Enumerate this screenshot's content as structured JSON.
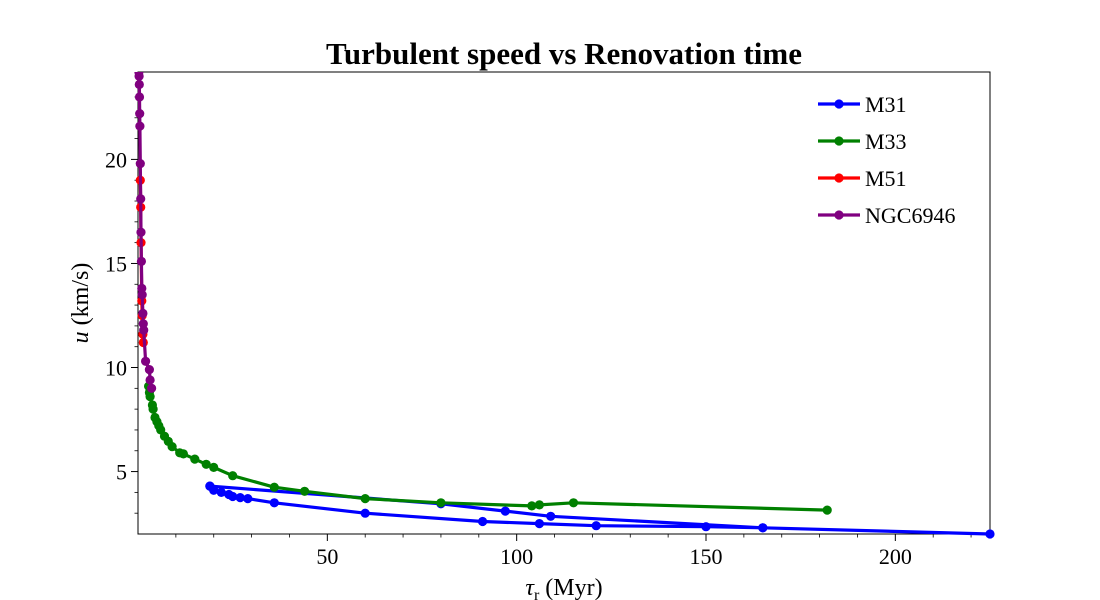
{
  "chart_data": {
    "type": "line",
    "title": "Turbulent speed vs Renovation time",
    "xlabel": {
      "main": "τ",
      "sub": "r",
      "unit": " (Myr)"
    },
    "ylabel": {
      "main": "u",
      "unit": " (km/s)"
    },
    "xlim": [
      0,
      225
    ],
    "ylim": [
      2.0,
      24.2
    ],
    "xticks": [
      50,
      100,
      150,
      200
    ],
    "yticks": [
      5,
      10,
      15,
      20
    ],
    "grid": false,
    "legend_position": "top-right",
    "series": [
      {
        "name": "M31",
        "color": "#0000ff",
        "points": [
          [
            225,
            2.0
          ],
          [
            165,
            2.3
          ],
          [
            150,
            2.35
          ],
          [
            121,
            2.4
          ],
          [
            106,
            2.5
          ],
          [
            91,
            2.6
          ],
          [
            60,
            3.0
          ],
          [
            36,
            3.5
          ],
          [
            29,
            3.7
          ],
          [
            27,
            3.75
          ],
          [
            25,
            3.8
          ],
          [
            24,
            3.9
          ],
          [
            22,
            4.0
          ],
          [
            20,
            4.1
          ],
          [
            19,
            4.3
          ],
          [
            19,
            4.3
          ],
          [
            80,
            3.45
          ],
          [
            97,
            3.1
          ],
          [
            109,
            2.85
          ],
          [
            165,
            2.3
          ]
        ]
      },
      {
        "name": "M33",
        "color": "#008000",
        "points": [
          [
            182,
            3.15
          ],
          [
            115,
            3.5
          ],
          [
            106,
            3.4
          ],
          [
            104,
            3.35
          ],
          [
            80,
            3.5
          ],
          [
            60,
            3.7
          ],
          [
            44,
            4.05
          ],
          [
            36,
            4.25
          ],
          [
            25,
            4.8
          ],
          [
            20,
            5.2
          ],
          [
            18,
            5.35
          ],
          [
            15,
            5.6
          ],
          [
            12,
            5.85
          ],
          [
            11,
            5.9
          ],
          [
            9,
            6.2
          ],
          [
            8,
            6.45
          ],
          [
            7,
            6.7
          ],
          [
            6,
            7.0
          ],
          [
            5.5,
            7.2
          ],
          [
            5,
            7.4
          ],
          [
            4.5,
            7.6
          ],
          [
            4,
            8.0
          ],
          [
            3.8,
            8.2
          ],
          [
            3.2,
            8.6
          ],
          [
            3,
            8.8
          ],
          [
            2.8,
            9.1
          ]
        ]
      },
      {
        "name": "M51",
        "color": "#ff0000",
        "points": [
          [
            1.4,
            11.2
          ],
          [
            1.3,
            11.6
          ],
          [
            1.1,
            12.5
          ],
          [
            1.0,
            13.2
          ],
          [
            0.8,
            16.0
          ],
          [
            0.7,
            17.7
          ],
          [
            0.6,
            19.0
          ]
        ]
      },
      {
        "name": "NGC6946",
        "color": "#800080",
        "points": [
          [
            3.6,
            9.0
          ],
          [
            3.2,
            9.4
          ],
          [
            3.0,
            9.9
          ],
          [
            2.0,
            10.3
          ],
          [
            1.5,
            11.8
          ],
          [
            1.4,
            12.1
          ],
          [
            1.3,
            12.6
          ],
          [
            1.1,
            13.5
          ],
          [
            1.0,
            13.8
          ],
          [
            0.9,
            15.1
          ],
          [
            0.8,
            16.5
          ],
          [
            0.7,
            18.1
          ],
          [
            0.6,
            19.8
          ],
          [
            0.5,
            21.6
          ],
          [
            0.45,
            22.2
          ],
          [
            0.4,
            23.0
          ],
          [
            0.35,
            23.6
          ],
          [
            0.3,
            24.0
          ],
          [
            0.25,
            24.2
          ]
        ]
      }
    ]
  }
}
